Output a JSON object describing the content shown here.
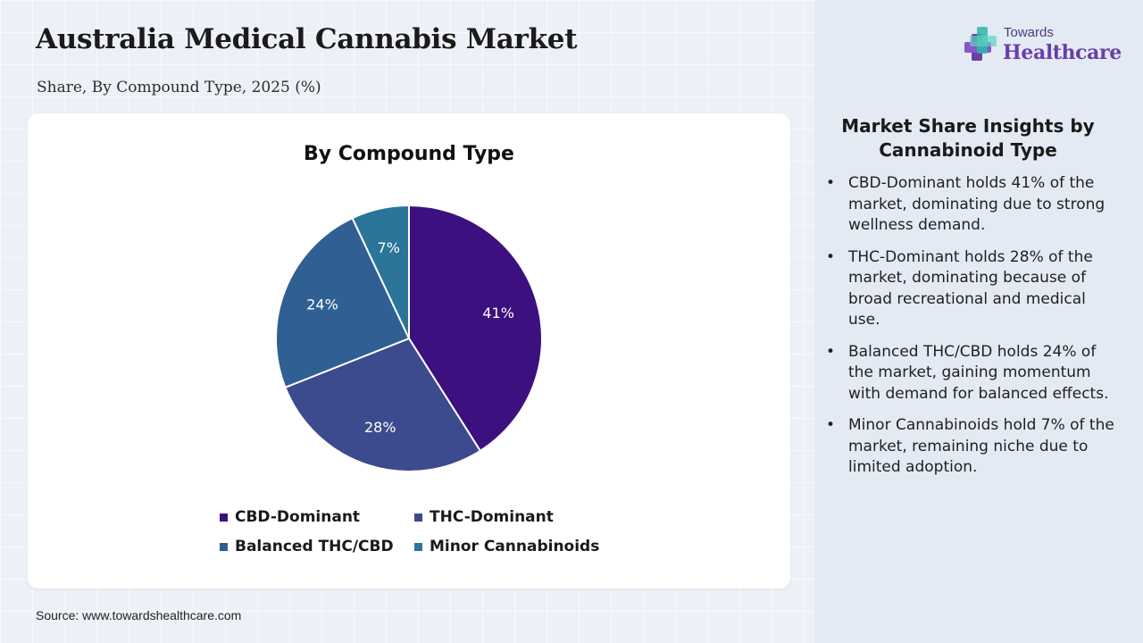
{
  "header": {
    "title": "Australia Medical Cannabis Market",
    "subtitle": "Share, By Compound Type, 2025 (%)"
  },
  "logo": {
    "top_text": "Towards",
    "main_text": "Healthcare"
  },
  "chart_data": {
    "type": "pie",
    "title": "By Compound Type",
    "categories": [
      "CBD-Dominant",
      "THC-Dominant",
      "Balanced THC/CBD",
      "Minor Cannabinoids"
    ],
    "values": [
      41,
      28,
      24,
      7
    ],
    "labels": [
      "41%",
      "28%",
      "24%",
      "7%"
    ],
    "colors": [
      "#3d1080",
      "#3b4b8d",
      "#2f5f93",
      "#2a7598"
    ],
    "start_angle": "12 o'clock",
    "direction": "clockwise",
    "legend_position": "bottom"
  },
  "insights": {
    "title": "Market Share Insights by Cannabinoid Type",
    "items": [
      "CBD-Dominant holds 41% of the market, dominating due to strong wellness demand.",
      "THC-Dominant holds 28% of the market, dominating because of broad recreational and medical use.",
      "Balanced THC/CBD holds 24% of the market, gaining momentum with demand for balanced effects.",
      "Minor Cannabinoids hold 7% of the market, remaining niche due to limited adoption."
    ]
  },
  "source": "Source: www.towardshealthcare.com"
}
